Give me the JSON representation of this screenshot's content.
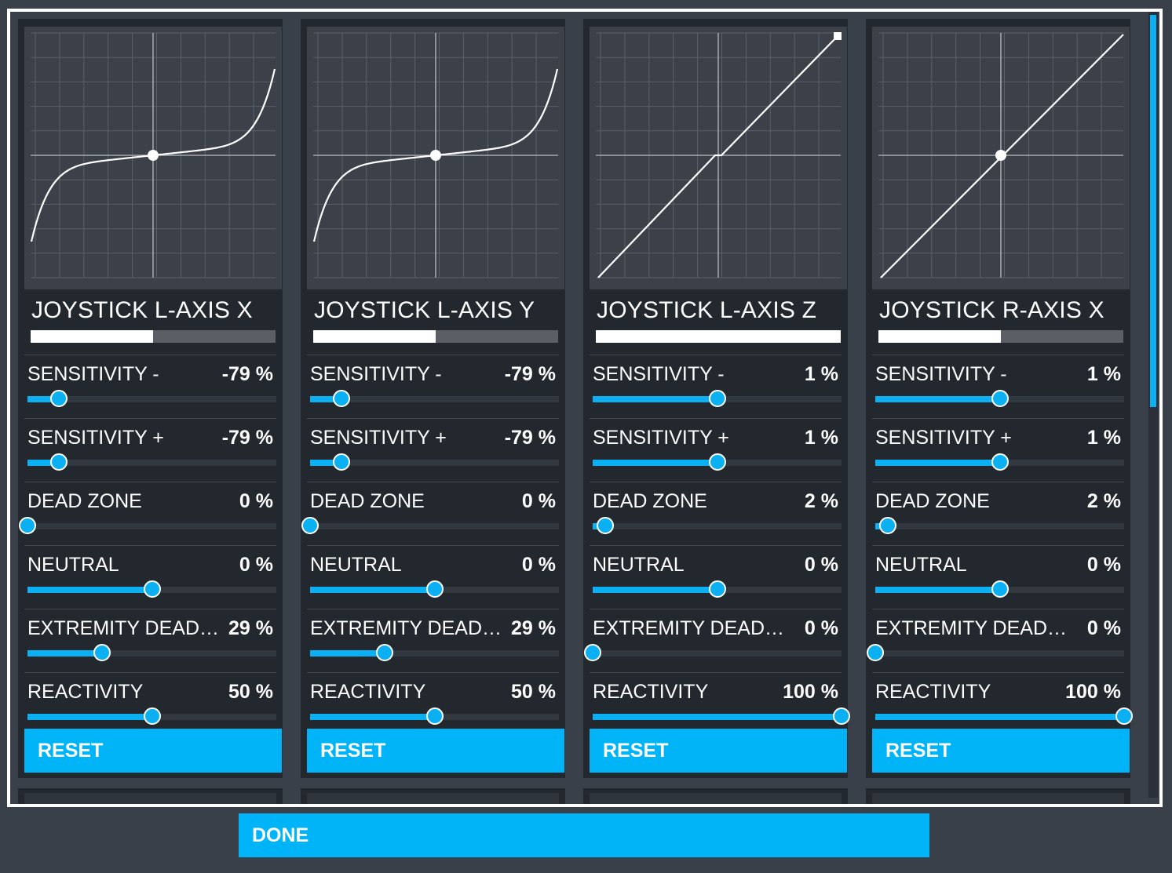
{
  "panels": [
    {
      "title": "JOYSTICK L-AXIS X",
      "input_level": 0.5,
      "curve": "s-curve",
      "settings": [
        {
          "label": "SENSITIVITY -",
          "value": "-79 %",
          "slider": 0.125
        },
        {
          "label": "SENSITIVITY +",
          "value": "-79 %",
          "slider": 0.125
        },
        {
          "label": "DEAD ZONE",
          "value": "0 %",
          "slider": 0
        },
        {
          "label": "NEUTRAL",
          "value": "0 %",
          "slider": 0.5
        },
        {
          "label": "EXTREMITY DEAD ZONE",
          "value": "29 %",
          "slider": 0.3
        },
        {
          "label": "REACTIVITY",
          "value": "50 %",
          "slider": 0.5
        }
      ],
      "reset_label": "RESET"
    },
    {
      "title": "JOYSTICK L-AXIS Y",
      "input_level": 0.5,
      "curve": "s-curve",
      "settings": [
        {
          "label": "SENSITIVITY -",
          "value": "-79 %",
          "slider": 0.125
        },
        {
          "label": "SENSITIVITY +",
          "value": "-79 %",
          "slider": 0.125
        },
        {
          "label": "DEAD ZONE",
          "value": "0 %",
          "slider": 0
        },
        {
          "label": "NEUTRAL",
          "value": "0 %",
          "slider": 0.5
        },
        {
          "label": "EXTREMITY DEAD ZONE",
          "value": "29 %",
          "slider": 0.3
        },
        {
          "label": "REACTIVITY",
          "value": "50 %",
          "slider": 0.5
        }
      ],
      "reset_label": "RESET"
    },
    {
      "title": "JOYSTICK L-AXIS Z",
      "input_level": 1.0,
      "curve": "linear-deadzone",
      "settings": [
        {
          "label": "SENSITIVITY -",
          "value": "1 %",
          "slider": 0.5
        },
        {
          "label": "SENSITIVITY +",
          "value": "1 %",
          "slider": 0.5
        },
        {
          "label": "DEAD ZONE",
          "value": "2 %",
          "slider": 0.05
        },
        {
          "label": "NEUTRAL",
          "value": "0 %",
          "slider": 0.5
        },
        {
          "label": "EXTREMITY DEAD ZONE",
          "value": "0 %",
          "slider": 0
        },
        {
          "label": "REACTIVITY",
          "value": "100 %",
          "slider": 1.0
        }
      ],
      "reset_label": "RESET"
    },
    {
      "title": "JOYSTICK R-AXIS X",
      "input_level": 0.5,
      "curve": "linear",
      "settings": [
        {
          "label": "SENSITIVITY -",
          "value": "1 %",
          "slider": 0.5
        },
        {
          "label": "SENSITIVITY +",
          "value": "1 %",
          "slider": 0.5
        },
        {
          "label": "DEAD ZONE",
          "value": "2 %",
          "slider": 0.05
        },
        {
          "label": "NEUTRAL",
          "value": "0 %",
          "slider": 0.5
        },
        {
          "label": "EXTREMITY DEAD ZONE",
          "value": "0 %",
          "slider": 0
        },
        {
          "label": "REACTIVITY",
          "value": "100 %",
          "slider": 1.0
        }
      ],
      "reset_label": "RESET"
    }
  ],
  "done_label": "DONE",
  "colors": {
    "accent": "#00b4f7",
    "panel_bg": "#23282f",
    "graph_bg": "#3b4049",
    "outer_bg": "#3a4049"
  }
}
